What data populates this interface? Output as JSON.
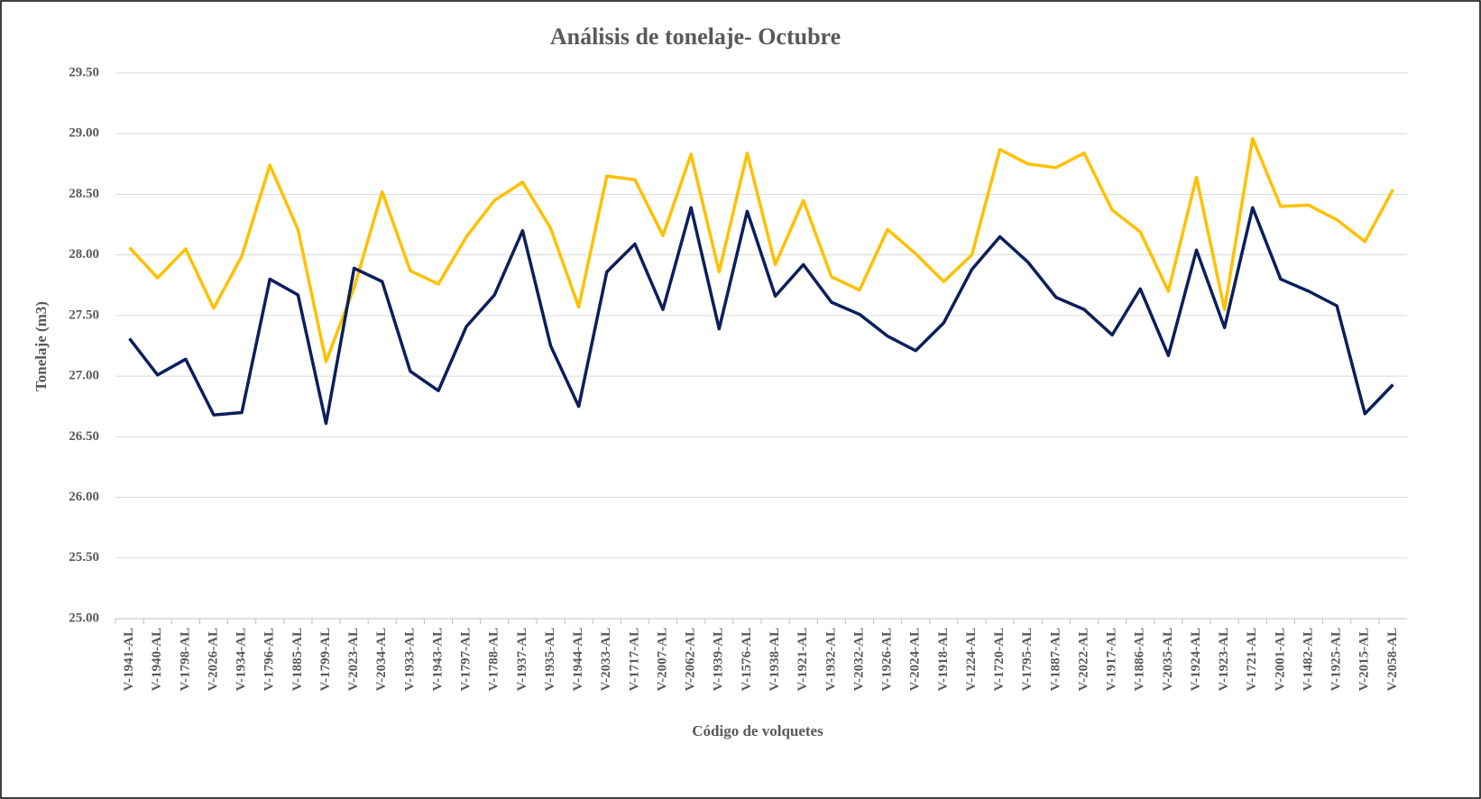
{
  "chart_data": {
    "type": "line",
    "title": "Análisis de tonelaje- Octubre",
    "xlabel": "Código de volquetes",
    "ylabel": "Tonelaje (m3)",
    "categories": [
      "V-1941-AL",
      "V-1940-AL",
      "V-1798-AL",
      "V-2026-AL",
      "V-1934-AL",
      "V-1796-AL",
      "V-1885-AL",
      "V-1799-AL",
      "V-2023-AL",
      "V-2034-AL",
      "V-1933-AL",
      "V-1943-AL",
      "V-1797-AL",
      "V-1788-AL",
      "V-1937-AL",
      "V-1935-AL",
      "V-1944-AL",
      "V-2033-AL",
      "V-1717-AL",
      "V-2007-AL",
      "V-2062-AL",
      "V-1939-AL",
      "V-1576-AL",
      "V-1938-AL",
      "V-1921-AL",
      "V-1932-AL",
      "V-2032-AL",
      "V-1926-AL",
      "V-2024-AL",
      "V-1918-AL",
      "V-1224-AL",
      "V-1720-AL",
      "V-1795-AL",
      "V-1887-AL",
      "V-2022-AL",
      "V-1917-AL",
      "V-1886-AL",
      "V-2035-AL",
      "V-1924-AL",
      "V-1923-AL",
      "V-1721-AL",
      "V-2001-AL",
      "V-1482-AL",
      "V-1925-AL",
      "V-2015-AL",
      "V-2058-AL"
    ],
    "series": [
      {
        "color": "#ffc000",
        "values": [
          28.06,
          27.81,
          28.05,
          27.56,
          27.99,
          28.74,
          28.21,
          27.12,
          27.73,
          28.52,
          27.87,
          27.76,
          28.15,
          28.45,
          28.6,
          28.22,
          27.57,
          28.65,
          28.62,
          28.16,
          28.83,
          27.86,
          28.84,
          27.92,
          28.45,
          27.82,
          27.71,
          28.21,
          28.01,
          27.78,
          28.0,
          28.87,
          28.75,
          28.72,
          28.84,
          28.37,
          28.19,
          27.7,
          28.64,
          27.55,
          28.96,
          28.4,
          28.41,
          28.29,
          28.11,
          28.54
        ]
      },
      {
        "color": "#0b1f5c",
        "values": [
          27.31,
          27.01,
          27.14,
          26.68,
          26.7,
          27.8,
          27.67,
          26.61,
          27.89,
          27.78,
          27.04,
          26.88,
          27.41,
          27.67,
          28.2,
          27.25,
          26.75,
          27.86,
          28.09,
          27.55,
          28.39,
          27.39,
          28.36,
          27.66,
          27.92,
          27.61,
          27.51,
          27.33,
          27.21,
          27.44,
          27.88,
          28.15,
          27.94,
          27.65,
          27.55,
          27.34,
          27.72,
          27.17,
          28.04,
          27.4,
          28.39,
          27.8,
          27.7,
          27.58,
          26.69,
          26.93
        ]
      }
    ],
    "ylim": [
      25,
      29.5
    ],
    "yticks": [
      {
        "value": 25,
        "label": "25.00"
      },
      {
        "value": 25.5,
        "label": "25.50"
      },
      {
        "value": 26,
        "label": "26.00"
      },
      {
        "value": 26.5,
        "label": "26.50"
      },
      {
        "value": 27,
        "label": "27.00"
      },
      {
        "value": 27.5,
        "label": "27.50"
      },
      {
        "value": 28,
        "label": "28.00"
      },
      {
        "value": 28.5,
        "label": "28.50"
      },
      {
        "value": 29,
        "label": "29.00"
      },
      {
        "value": 29.5,
        "label": "29.50"
      }
    ],
    "grid": true
  }
}
